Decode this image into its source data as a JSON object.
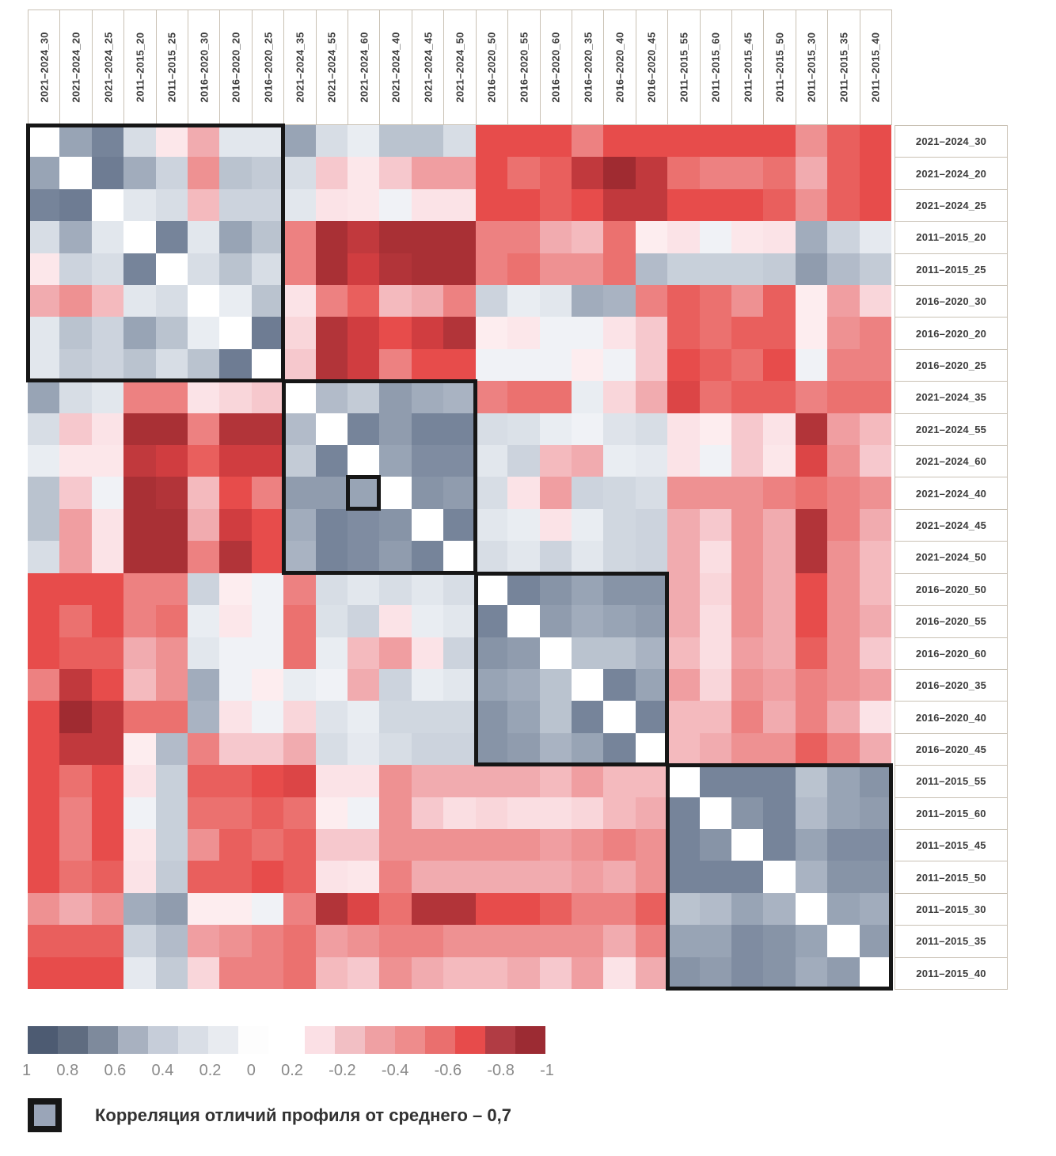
{
  "legend": {
    "text": "Корреляция отличий профиля от среднего – 0,7",
    "swatch_fill": "#9aa5b8",
    "swatch_border": "#171717"
  },
  "chart_data": {
    "type": "heatmap",
    "title": "",
    "labels": [
      "2021–2024_30",
      "2021–2024_20",
      "2021–2024_25",
      "2011–2015_20",
      "2011–2015_25",
      "2016–2020_30",
      "2016–2020_20",
      "2016–2020_25",
      "2021–2024_35",
      "2021–2024_55",
      "2021–2024_60",
      "2021–2024_40",
      "2021–2024_45",
      "2021–2024_50",
      "2016–2020_50",
      "2016–2020_55",
      "2016–2020_60",
      "2016–2020_35",
      "2016–2020_40",
      "2016–2020_45",
      "2011–2015_55",
      "2011–2015_60",
      "2011–2015_45",
      "2011–2015_50",
      "2011–2015_30",
      "2011–2015_35",
      "2011–2015_40"
    ],
    "value_range": [
      1,
      -1
    ],
    "diagonal": "blank-white",
    "matrix": [
      [
        null,
        0.5,
        0.7,
        0.15,
        -0.08,
        -0.3,
        0.1,
        0.1,
        0.5,
        0.15,
        0.05,
        0.3,
        0.3,
        0.15,
        -0.6,
        -0.6,
        -0.6,
        -0.45,
        -0.6,
        -0.6,
        -0.6,
        -0.6,
        -0.6,
        -0.6,
        -0.4,
        -0.55,
        -0.6
      ],
      [
        0.5,
        null,
        0.75,
        0.45,
        0.2,
        -0.4,
        0.3,
        0.25,
        0.15,
        -0.2,
        -0.08,
        -0.2,
        -0.35,
        -0.35,
        -0.6,
        -0.5,
        -0.55,
        -0.75,
        -0.9,
        -0.75,
        -0.5,
        -0.45,
        -0.45,
        -0.5,
        -0.3,
        -0.55,
        -0.6
      ],
      [
        0.7,
        0.75,
        null,
        0.1,
        0.15,
        -0.25,
        0.2,
        0.2,
        0.1,
        -0.1,
        -0.08,
        0,
        -0.1,
        -0.1,
        -0.6,
        -0.6,
        -0.55,
        -0.6,
        -0.75,
        -0.75,
        -0.6,
        -0.6,
        -0.6,
        -0.55,
        -0.4,
        -0.55,
        -0.6
      ],
      [
        0.15,
        0.45,
        0.1,
        null,
        0.7,
        0.1,
        0.5,
        0.3,
        -0.45,
        -0.85,
        -0.75,
        -0.85,
        -0.85,
        -0.85,
        -0.45,
        -0.45,
        -0.3,
        -0.25,
        -0.5,
        -0.05,
        -0.1,
        0,
        -0.08,
        -0.1,
        0.45,
        0.2,
        0.08
      ],
      [
        -0.08,
        0.2,
        0.15,
        0.7,
        null,
        0.15,
        0.3,
        0.15,
        -0.45,
        -0.85,
        -0.7,
        -0.8,
        -0.85,
        -0.85,
        -0.45,
        -0.5,
        -0.4,
        -0.4,
        -0.5,
        0.35,
        0.22,
        0.22,
        0.22,
        0.25,
        0.55,
        0.35,
        0.25
      ],
      [
        -0.3,
        -0.4,
        -0.25,
        0.1,
        0.15,
        null,
        0.05,
        0.3,
        -0.1,
        -0.45,
        -0.55,
        -0.25,
        -0.3,
        -0.45,
        0.2,
        0.05,
        0.1,
        0.45,
        0.4,
        -0.45,
        -0.55,
        -0.5,
        -0.4,
        -0.55,
        -0.05,
        -0.35,
        -0.15
      ],
      [
        0.1,
        0.3,
        0.2,
        0.5,
        0.3,
        0.05,
        null,
        0.75,
        -0.15,
        -0.8,
        -0.7,
        -0.6,
        -0.7,
        -0.8,
        -0.05,
        -0.08,
        0,
        0,
        -0.1,
        -0.2,
        -0.55,
        -0.5,
        -0.55,
        -0.55,
        -0.05,
        -0.4,
        -0.45
      ],
      [
        0.1,
        0.25,
        0.2,
        0.3,
        0.15,
        0.3,
        0.75,
        null,
        -0.2,
        -0.8,
        -0.7,
        -0.45,
        -0.6,
        -0.6,
        0,
        0,
        0,
        -0.05,
        0,
        -0.2,
        -0.6,
        -0.55,
        -0.5,
        -0.6,
        0,
        -0.45,
        -0.45
      ],
      [
        0.5,
        0.15,
        0.1,
        -0.45,
        -0.45,
        -0.1,
        -0.15,
        -0.2,
        null,
        0.35,
        0.25,
        0.55,
        0.45,
        0.4,
        -0.45,
        -0.5,
        -0.5,
        0.05,
        -0.15,
        -0.3,
        -0.65,
        -0.5,
        -0.55,
        -0.55,
        -0.45,
        -0.5,
        -0.5
      ],
      [
        0.15,
        -0.2,
        -0.1,
        -0.85,
        -0.85,
        -0.45,
        -0.8,
        -0.8,
        0.35,
        null,
        0.7,
        0.55,
        0.7,
        0.7,
        0.15,
        0.13,
        0.05,
        0,
        0.12,
        0.15,
        -0.1,
        -0.05,
        -0.2,
        -0.1,
        -0.8,
        -0.35,
        -0.25
      ],
      [
        0.05,
        -0.08,
        -0.08,
        -0.75,
        -0.7,
        -0.55,
        -0.7,
        -0.7,
        0.25,
        0.7,
        null,
        0.5,
        0.65,
        0.65,
        0.1,
        0.2,
        -0.25,
        -0.3,
        0.05,
        0.08,
        -0.1,
        0,
        -0.2,
        -0.08,
        -0.65,
        -0.4,
        -0.2
      ],
      [
        0.3,
        -0.2,
        0,
        -0.85,
        -0.8,
        -0.25,
        -0.6,
        -0.45,
        0.55,
        0.55,
        0.5,
        null,
        0.6,
        0.55,
        0.15,
        -0.1,
        -0.35,
        0.2,
        0.18,
        0.15,
        -0.4,
        -0.4,
        -0.4,
        -0.45,
        -0.5,
        -0.45,
        -0.4
      ],
      [
        0.3,
        -0.35,
        -0.1,
        -0.85,
        -0.85,
        -0.3,
        -0.7,
        -0.6,
        0.45,
        0.7,
        0.65,
        0.6,
        null,
        0.7,
        0.1,
        0.05,
        -0.1,
        0.05,
        0.18,
        0.2,
        -0.3,
        -0.2,
        -0.4,
        -0.3,
        -0.8,
        -0.45,
        -0.3
      ],
      [
        0.15,
        -0.35,
        -0.1,
        -0.85,
        -0.85,
        -0.45,
        -0.8,
        -0.6,
        0.4,
        0.7,
        0.65,
        0.55,
        0.7,
        null,
        0.15,
        0.1,
        0.2,
        0.1,
        0.18,
        0.2,
        -0.3,
        -0.12,
        -0.4,
        -0.3,
        -0.8,
        -0.4,
        -0.25
      ],
      [
        -0.6,
        -0.6,
        -0.6,
        -0.45,
        -0.45,
        0.2,
        -0.05,
        0,
        -0.45,
        0.15,
        0.1,
        0.15,
        0.1,
        0.15,
        null,
        0.7,
        0.6,
        0.5,
        0.6,
        0.6,
        -0.3,
        -0.15,
        -0.4,
        -0.3,
        -0.6,
        -0.4,
        -0.25
      ],
      [
        -0.6,
        -0.5,
        -0.6,
        -0.45,
        -0.5,
        0.05,
        -0.08,
        0,
        -0.5,
        0.13,
        0.2,
        -0.1,
        0.05,
        0.1,
        0.7,
        null,
        0.55,
        0.45,
        0.5,
        0.55,
        -0.3,
        -0.12,
        -0.4,
        -0.3,
        -0.6,
        -0.4,
        -0.3
      ],
      [
        -0.6,
        -0.55,
        -0.55,
        -0.3,
        -0.4,
        0.1,
        0,
        0,
        -0.5,
        0.05,
        -0.25,
        -0.35,
        -0.1,
        0.2,
        0.6,
        0.55,
        null,
        0.3,
        0.3,
        0.4,
        -0.25,
        -0.12,
        -0.35,
        -0.3,
        -0.55,
        -0.4,
        -0.2
      ],
      [
        -0.45,
        -0.75,
        -0.6,
        -0.25,
        -0.4,
        0.45,
        0,
        -0.05,
        0.05,
        0,
        -0.3,
        0.2,
        0.05,
        0.1,
        0.5,
        0.45,
        0.3,
        null,
        0.7,
        0.5,
        -0.35,
        -0.15,
        -0.4,
        -0.35,
        -0.45,
        -0.4,
        -0.35
      ],
      [
        -0.6,
        -0.9,
        -0.75,
        -0.5,
        -0.5,
        0.4,
        -0.1,
        0,
        -0.15,
        0.12,
        0.05,
        0.18,
        0.18,
        0.18,
        0.6,
        0.5,
        0.3,
        0.7,
        null,
        0.7,
        -0.25,
        -0.25,
        -0.45,
        -0.3,
        -0.45,
        -0.3,
        -0.1
      ],
      [
        -0.6,
        -0.75,
        -0.75,
        -0.05,
        0.35,
        -0.45,
        -0.2,
        -0.2,
        -0.3,
        0.15,
        0.08,
        0.15,
        0.2,
        0.2,
        0.6,
        0.55,
        0.4,
        0.5,
        0.7,
        null,
        -0.25,
        -0.3,
        -0.4,
        -0.4,
        -0.55,
        -0.45,
        -0.3
      ],
      [
        -0.6,
        -0.5,
        -0.6,
        -0.1,
        0.22,
        -0.55,
        -0.55,
        -0.6,
        -0.65,
        -0.1,
        -0.1,
        -0.4,
        -0.3,
        -0.3,
        -0.3,
        -0.3,
        -0.25,
        -0.35,
        -0.25,
        -0.25,
        null,
        0.7,
        0.7,
        0.7,
        0.3,
        0.5,
        0.6
      ],
      [
        -0.6,
        -0.45,
        -0.6,
        0,
        0.22,
        -0.5,
        -0.5,
        -0.55,
        -0.5,
        -0.05,
        0,
        -0.4,
        -0.2,
        -0.12,
        -0.15,
        -0.12,
        -0.12,
        -0.15,
        -0.25,
        -0.3,
        0.7,
        null,
        0.6,
        0.7,
        0.35,
        0.5,
        0.55
      ],
      [
        -0.6,
        -0.45,
        -0.6,
        -0.08,
        0.22,
        -0.4,
        -0.55,
        -0.5,
        -0.55,
        -0.2,
        -0.2,
        -0.4,
        -0.4,
        -0.4,
        -0.4,
        -0.4,
        -0.35,
        -0.4,
        -0.45,
        -0.4,
        0.7,
        0.6,
        null,
        0.7,
        0.5,
        0.65,
        0.65
      ],
      [
        -0.6,
        -0.5,
        -0.55,
        -0.1,
        0.25,
        -0.55,
        -0.55,
        -0.6,
        -0.55,
        -0.1,
        -0.08,
        -0.45,
        -0.3,
        -0.3,
        -0.3,
        -0.3,
        -0.3,
        -0.35,
        -0.3,
        -0.4,
        0.7,
        0.7,
        0.7,
        null,
        0.4,
        0.6,
        0.6
      ],
      [
        -0.4,
        -0.3,
        -0.4,
        0.45,
        0.55,
        -0.05,
        -0.05,
        0,
        -0.45,
        -0.8,
        -0.65,
        -0.5,
        -0.8,
        -0.8,
        -0.6,
        -0.6,
        -0.55,
        -0.45,
        -0.45,
        -0.55,
        0.3,
        0.35,
        0.5,
        0.4,
        null,
        0.5,
        0.45
      ],
      [
        -0.55,
        -0.55,
        -0.55,
        0.2,
        0.35,
        -0.35,
        -0.4,
        -0.45,
        -0.5,
        -0.35,
        -0.4,
        -0.45,
        -0.45,
        -0.4,
        -0.4,
        -0.4,
        -0.4,
        -0.4,
        -0.3,
        -0.45,
        0.5,
        0.5,
        0.65,
        0.6,
        0.5,
        null,
        0.55
      ],
      [
        -0.6,
        -0.6,
        -0.6,
        0.08,
        0.25,
        -0.15,
        -0.45,
        -0.45,
        -0.5,
        -0.25,
        -0.2,
        -0.4,
        -0.3,
        -0.25,
        -0.25,
        -0.3,
        -0.2,
        -0.35,
        -0.1,
        -0.3,
        0.6,
        0.55,
        0.65,
        0.6,
        0.45,
        0.55,
        null
      ]
    ],
    "clusters": [
      {
        "from": 1,
        "to": 8
      },
      {
        "from": 9,
        "to": 14
      },
      {
        "from": 15,
        "to": 20
      },
      {
        "from": 21,
        "to": 27
      }
    ],
    "highlight_cell": {
      "row": 12,
      "col": 11,
      "note": "black outlined single cell"
    },
    "cluster_border_color": "#161616",
    "colorscale": {
      "positive": [
        "#f0f2f6",
        "#e2e7ed",
        "#ccd3dd",
        "#bac3cf",
        "#a9b3c2",
        "#98a4b5",
        "#8794a7",
        "#76849a",
        "#65748c",
        "#56657e",
        "#4d5b72"
      ],
      "negative": [
        "#fef6f7",
        "#fbe3e7",
        "#f6c8cd",
        "#f1abaf",
        "#ee9192",
        "#eb716f",
        "#e74c4b",
        "#d03d40",
        "#b23439",
        "#a02b31",
        "#9c2b33"
      ]
    },
    "colorbar": {
      "blue_segments": [
        "#4d5b72",
        "#5f6c80",
        "#7e8a9c",
        "#a8b1c0",
        "#c6cdd9",
        "#d9dee6",
        "#e8ebf0",
        "#fdfdfd"
      ],
      "red_segments": [
        "#fbe0e5",
        "#f2bfc4",
        "#efa0a3",
        "#ee8c8c",
        "#ea6f6e",
        "#e74b4b",
        "#b13c44",
        "#9c2b33"
      ],
      "tick_labels": [
        "1",
        "0.8",
        "0.6",
        "0.4",
        "0.2",
        "0",
        "0.2",
        "-0.2",
        "-0.4",
        "-0.6",
        "-0.8",
        "-1"
      ]
    },
    "legend_position": "bottom",
    "grid": "off"
  }
}
